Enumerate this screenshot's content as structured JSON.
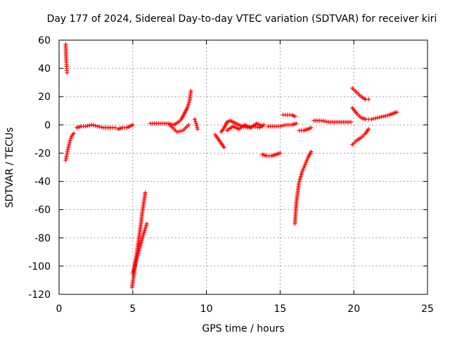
{
  "chart_data": {
    "type": "scatter",
    "title": "Day 177 of 2024, Sidereal Day-to-day VTEC variation (SDTVAR) for receiver kiri",
    "xlabel": "GPS time / hours",
    "ylabel": "SDTVAR / TECUs",
    "xlim": [
      0,
      25
    ],
    "ylim": [
      -120,
      60
    ],
    "xticks": [
      0,
      5,
      10,
      15,
      20,
      25
    ],
    "yticks": [
      -120,
      -100,
      -80,
      -60,
      -40,
      -20,
      0,
      20,
      40,
      60
    ],
    "grid": true,
    "marker": "plus",
    "color": "#ff0000",
    "series": [
      {
        "segments": [
          [
            [
              0.45,
              57
            ],
            [
              0.47,
              50
            ],
            [
              0.5,
              44
            ],
            [
              0.52,
              40
            ],
            [
              0.55,
              37
            ]
          ],
          [
            [
              0.45,
              -25
            ],
            [
              0.55,
              -20
            ],
            [
              0.65,
              -15
            ],
            [
              0.75,
              -11
            ],
            [
              0.85,
              -8
            ],
            [
              1.0,
              -6
            ]
          ],
          [
            [
              1.2,
              -2
            ],
            [
              1.5,
              -1
            ],
            [
              1.8,
              -1
            ],
            [
              2.2,
              0
            ],
            [
              2.6,
              -1
            ],
            [
              3.0,
              -2
            ],
            [
              3.5,
              -2
            ],
            [
              3.8,
              -2
            ]
          ],
          [
            [
              4.0,
              -3
            ],
            [
              4.3,
              -2
            ],
            [
              4.6,
              -2
            ],
            [
              4.8,
              -1
            ],
            [
              5.0,
              0
            ]
          ],
          [
            [
              4.95,
              -115
            ],
            [
              5.05,
              -108
            ],
            [
              5.15,
              -100
            ],
            [
              5.25,
              -92
            ],
            [
              5.35,
              -85
            ],
            [
              5.45,
              -78
            ],
            [
              5.55,
              -70
            ],
            [
              5.65,
              -62
            ],
            [
              5.75,
              -55
            ],
            [
              5.85,
              -48
            ]
          ],
          [
            [
              5.0,
              -105
            ],
            [
              5.2,
              -97
            ],
            [
              5.4,
              -90
            ],
            [
              5.6,
              -82
            ],
            [
              5.8,
              -75
            ],
            [
              5.95,
              -70
            ]
          ],
          [
            [
              6.2,
              1
            ],
            [
              6.6,
              1
            ],
            [
              7.0,
              1
            ],
            [
              7.4,
              1
            ],
            [
              7.8,
              0
            ],
            [
              8.1,
              2
            ],
            [
              8.3,
              4
            ],
            [
              8.5,
              8
            ],
            [
              8.7,
              12
            ],
            [
              8.85,
              17
            ],
            [
              8.95,
              24
            ]
          ],
          [
            [
              7.5,
              0
            ],
            [
              7.8,
              -3
            ],
            [
              8.0,
              -5
            ],
            [
              8.4,
              -4
            ],
            [
              8.6,
              -2
            ],
            [
              8.8,
              0
            ]
          ],
          [
            [
              9.2,
              4
            ],
            [
              9.3,
              1
            ],
            [
              9.4,
              -3
            ]
          ],
          [
            [
              10.6,
              -7
            ],
            [
              11.0,
              -13
            ],
            [
              11.2,
              -16
            ]
          ],
          [
            [
              11.0,
              -5
            ],
            [
              11.2,
              -2
            ],
            [
              11.4,
              2
            ],
            [
              11.6,
              3
            ],
            [
              12.0,
              1
            ],
            [
              12.4,
              -1
            ],
            [
              12.8,
              -2
            ],
            [
              13.2,
              -1
            ],
            [
              13.6,
              -2
            ],
            [
              13.9,
              0
            ]
          ],
          [
            [
              11.4,
              -4
            ],
            [
              11.8,
              -1
            ],
            [
              12.2,
              -3
            ],
            [
              12.6,
              0
            ],
            [
              13.0,
              -2
            ],
            [
              13.4,
              1
            ],
            [
              13.8,
              -1
            ]
          ],
          [
            [
              13.8,
              -21
            ],
            [
              14.1,
              -22
            ],
            [
              14.4,
              -22
            ],
            [
              14.7,
              -21
            ],
            [
              15.0,
              -20
            ]
          ],
          [
            [
              14.2,
              -1
            ],
            [
              14.6,
              -1
            ],
            [
              15.0,
              -1
            ],
            [
              15.4,
              0
            ],
            [
              15.8,
              0
            ],
            [
              16.1,
              1
            ]
          ],
          [
            [
              15.2,
              7
            ],
            [
              15.5,
              7
            ],
            [
              15.8,
              7
            ],
            [
              16.0,
              6
            ]
          ],
          [
            [
              16.0,
              -70
            ],
            [
              16.05,
              -63
            ],
            [
              16.1,
              -55
            ],
            [
              16.2,
              -47
            ],
            [
              16.3,
              -40
            ],
            [
              16.5,
              -33
            ],
            [
              16.7,
              -28
            ],
            [
              16.9,
              -23
            ],
            [
              17.1,
              -19
            ]
          ],
          [
            [
              16.3,
              -4
            ],
            [
              16.6,
              -4
            ],
            [
              16.9,
              -3
            ],
            [
              17.1,
              -2
            ]
          ],
          [
            [
              17.3,
              3
            ],
            [
              17.8,
              3
            ],
            [
              18.3,
              2
            ],
            [
              18.8,
              2
            ],
            [
              19.3,
              2
            ],
            [
              19.8,
              2
            ]
          ],
          [
            [
              19.9,
              26
            ],
            [
              20.2,
              23
            ],
            [
              20.5,
              20
            ],
            [
              20.8,
              18
            ],
            [
              21.0,
              18
            ]
          ],
          [
            [
              19.9,
              12
            ],
            [
              20.2,
              8
            ],
            [
              20.5,
              5
            ],
            [
              20.8,
              4
            ],
            [
              21.0,
              4
            ]
          ],
          [
            [
              19.9,
              -14
            ],
            [
              20.2,
              -11
            ],
            [
              20.5,
              -9
            ],
            [
              20.8,
              -6
            ],
            [
              21.0,
              -3
            ]
          ],
          [
            [
              21.2,
              4
            ],
            [
              21.6,
              5
            ],
            [
              22.0,
              6
            ],
            [
              22.4,
              7
            ],
            [
              22.9,
              9
            ]
          ]
        ]
      }
    ]
  }
}
